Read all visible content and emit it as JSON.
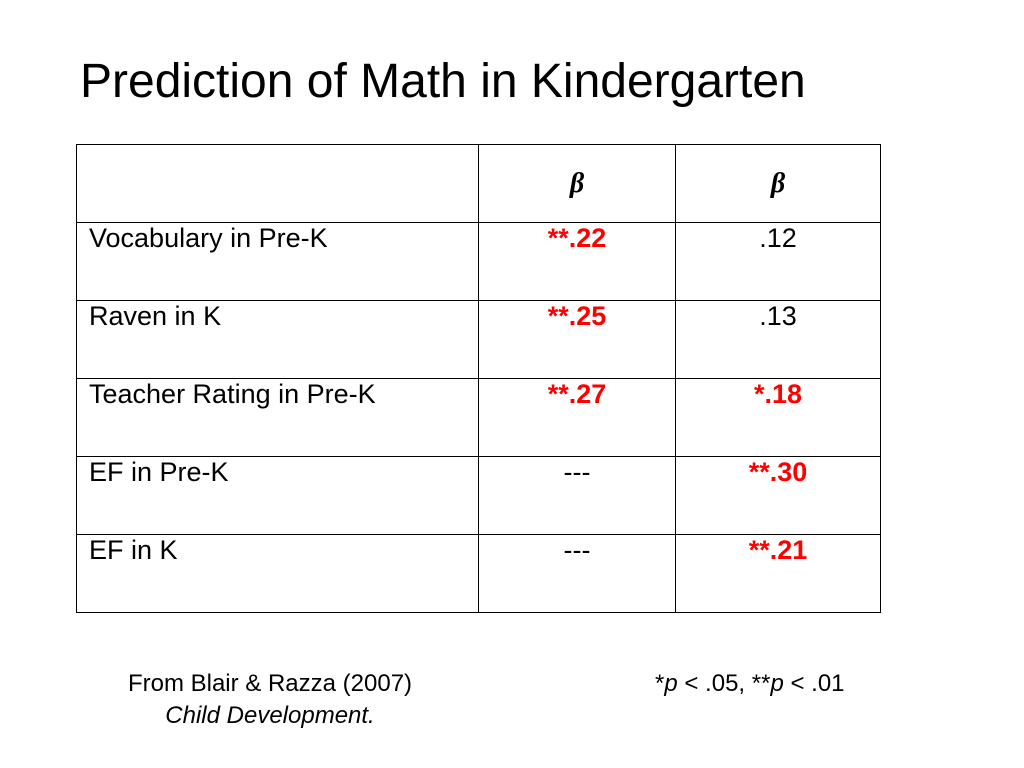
{
  "slide": {
    "title": "Prediction of Math in Kindergarten"
  },
  "table": {
    "headers": [
      "",
      "β",
      "β"
    ],
    "rows": [
      {
        "label": "Vocabulary in Pre-K",
        "col1": "**.22",
        "col1_significant": true,
        "col2": ".12",
        "col2_significant": false
      },
      {
        "label": "Raven in K",
        "col1": "**.25",
        "col1_significant": true,
        "col2": ".13",
        "col2_significant": false
      },
      {
        "label": "Teacher Rating in Pre-K",
        "col1": "**.27",
        "col1_significant": true,
        "col2": "*.18",
        "col2_significant": true
      },
      {
        "label": "EF in Pre-K",
        "col1": "---",
        "col1_significant": false,
        "col2": "**.30",
        "col2_significant": true
      },
      {
        "label": "EF in K",
        "col1": "---",
        "col1_significant": false,
        "col2": "**.21",
        "col2_significant": true
      }
    ]
  },
  "source": {
    "citation": "From Blair & Razza (2007)",
    "journal": "Child Development."
  },
  "footnote": {
    "star1": "*",
    "p1": "p",
    "cond1": " < .05,  ",
    "star2": "**",
    "p2": "p",
    "cond2": " < .01"
  },
  "colors": {
    "significant": "#ff0000",
    "text": "#000000",
    "background": "#ffffff"
  }
}
